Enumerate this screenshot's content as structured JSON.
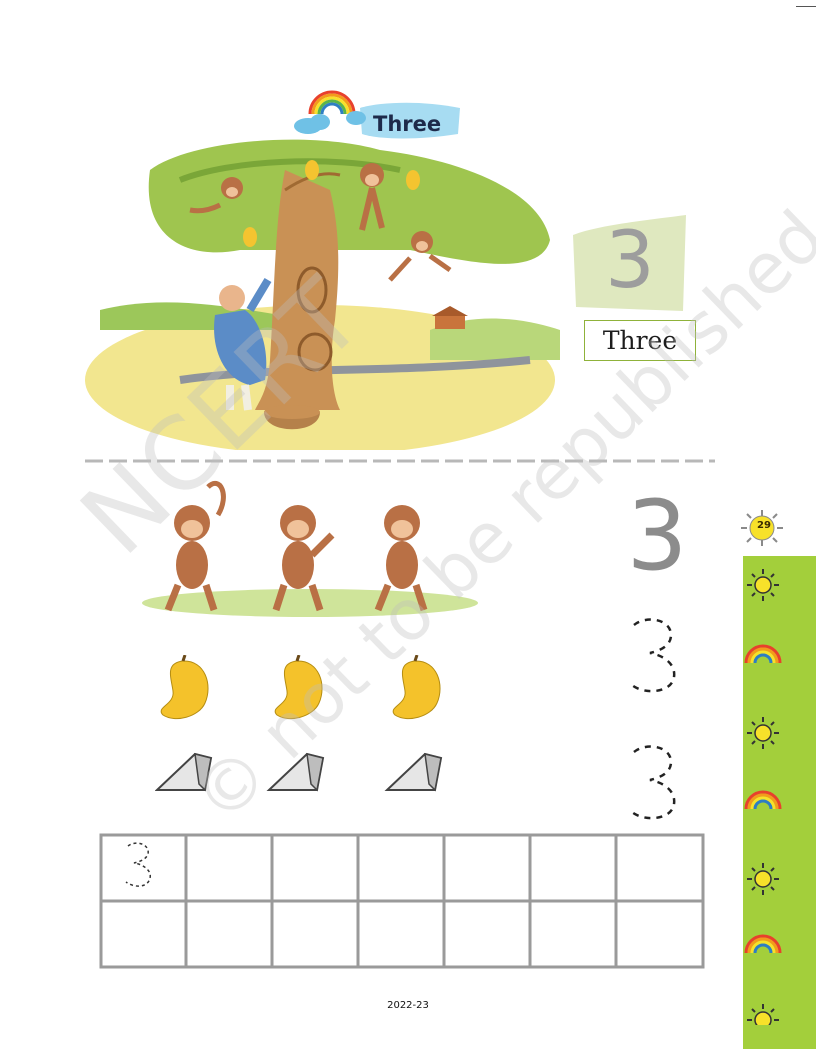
{
  "page": {
    "title": "Three",
    "numeral": "3",
    "word": "Three",
    "practice_numeral": "3",
    "page_number": "29",
    "footer_year": "2022-23"
  },
  "watermark": {
    "line1": "NCERT",
    "line2": "© not to be republished"
  },
  "counting_rows": [
    {
      "item": "monkey",
      "count": 3
    },
    {
      "item": "mango",
      "count": 3
    },
    {
      "item": "cheese-wedge",
      "count": 3
    }
  ],
  "side_strip_icons": [
    "sun-icon",
    "rainbow-icon",
    "sun-icon",
    "rainbow-icon",
    "sun-icon",
    "rainbow-icon",
    "sun-icon"
  ],
  "colors": {
    "strip": "#a3cf3b",
    "numeral": "#9d9d9d",
    "panel": "#dfe8bf"
  }
}
